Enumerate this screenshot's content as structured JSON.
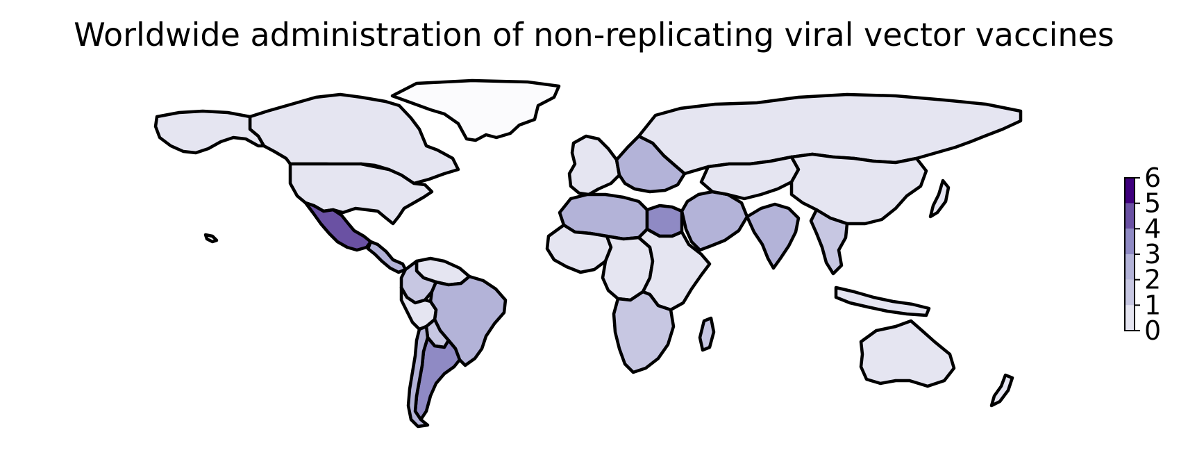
{
  "title": "Worldwide administration of non-replicating viral vector vaccines",
  "colorbar": {
    "ticks": [
      "0",
      "1",
      "2",
      "3",
      "4",
      "5",
      "6"
    ],
    "min": 0,
    "max": 6,
    "bin_colors": [
      "#fbfbfd",
      "#e5e5f1",
      "#c7c7e2",
      "#b3b3d8",
      "#8f8ac4",
      "#6a51a3",
      "#3f007d"
    ]
  },
  "regions": [
    {
      "name": "Greenland",
      "value": 0
    },
    {
      "name": "Canada",
      "value": 1
    },
    {
      "name": "Alaska",
      "value": 1
    },
    {
      "name": "United States",
      "value": 1
    },
    {
      "name": "Mexico",
      "value": 5
    },
    {
      "name": "Central America",
      "value": 3
    },
    {
      "name": "Colombia",
      "value": 2
    },
    {
      "name": "Venezuela",
      "value": 1
    },
    {
      "name": "Peru",
      "value": 1
    },
    {
      "name": "Brazil",
      "value": 3
    },
    {
      "name": "Bolivia",
      "value": 2
    },
    {
      "name": "Argentina",
      "value": 4
    },
    {
      "name": "Chile",
      "value": 3
    },
    {
      "name": "Western Europe",
      "value": 1
    },
    {
      "name": "Eastern Europe",
      "value": 3
    },
    {
      "name": "Russia",
      "value": 1
    },
    {
      "name": "North Africa",
      "value": 3
    },
    {
      "name": "Egypt",
      "value": 4
    },
    {
      "name": "West Africa",
      "value": 1
    },
    {
      "name": "Central Africa",
      "value": 1
    },
    {
      "name": "East Africa",
      "value": 1
    },
    {
      "name": "Southern Africa",
      "value": 2
    },
    {
      "name": "Madagascar",
      "value": 2
    },
    {
      "name": "Middle East",
      "value": 3
    },
    {
      "name": "Central Asia",
      "value": 1
    },
    {
      "name": "Mongolia",
      "value": 3
    },
    {
      "name": "China",
      "value": 1
    },
    {
      "name": "India",
      "value": 3
    },
    {
      "name": "Southeast Asia",
      "value": 2
    },
    {
      "name": "Indonesia",
      "value": 1
    },
    {
      "name": "Japan",
      "value": 1
    },
    {
      "name": "Australia",
      "value": 1
    },
    {
      "name": "New Zealand",
      "value": 1
    }
  ]
}
